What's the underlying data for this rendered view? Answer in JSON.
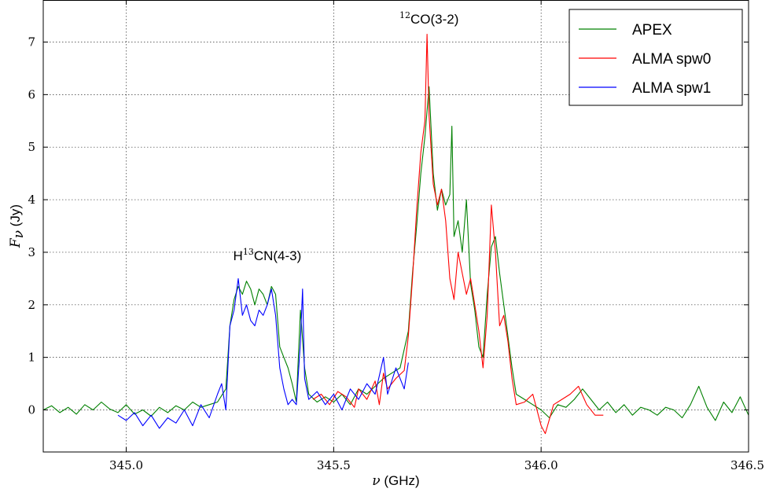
{
  "chart_data": {
    "type": "line",
    "xlabel": {
      "symbol": "ν",
      "unit": "(GHz)"
    },
    "ylabel": {
      "symbol": "F",
      "subscript": "ν",
      "unit": "(Jy)"
    },
    "xlim": [
      344.8,
      346.5
    ],
    "ylim": [
      -0.8,
      7.8
    ],
    "xticks": [
      345.0,
      345.5,
      346.0,
      346.5
    ],
    "xtick_labels": [
      "345.0",
      "345.5",
      "346.0",
      "346.5"
    ],
    "yticks": [
      0,
      1,
      2,
      3,
      4,
      5,
      6,
      7
    ],
    "ytick_labels": [
      "0",
      "1",
      "2",
      "3",
      "4",
      "5",
      "6",
      "7"
    ],
    "grid": true,
    "legend_position": "top-right",
    "annotations": [
      {
        "sup": "13",
        "before": "H",
        "after": "CN(4-3)",
        "x": 345.34,
        "y": 2.85
      },
      {
        "sup": "12",
        "before": "",
        "after": "CO(3-2)",
        "x": 345.73,
        "y": 7.35
      }
    ],
    "series": [
      {
        "name": "APEX",
        "color": "#008000",
        "points": [
          [
            344.8,
            0.0
          ],
          [
            344.82,
            0.08
          ],
          [
            344.84,
            -0.05
          ],
          [
            344.86,
            0.05
          ],
          [
            344.88,
            -0.08
          ],
          [
            344.9,
            0.1
          ],
          [
            344.92,
            0.0
          ],
          [
            344.94,
            0.15
          ],
          [
            344.96,
            0.02
          ],
          [
            344.98,
            -0.05
          ],
          [
            345.0,
            0.1
          ],
          [
            345.02,
            -0.08
          ],
          [
            345.04,
            0.0
          ],
          [
            345.06,
            -0.12
          ],
          [
            345.08,
            0.05
          ],
          [
            345.1,
            -0.05
          ],
          [
            345.12,
            0.08
          ],
          [
            345.14,
            0.0
          ],
          [
            345.16,
            0.15
          ],
          [
            345.18,
            0.05
          ],
          [
            345.2,
            0.1
          ],
          [
            345.22,
            0.15
          ],
          [
            345.24,
            0.4
          ],
          [
            345.245,
            1.0
          ],
          [
            345.25,
            1.6
          ],
          [
            345.26,
            2.1
          ],
          [
            345.27,
            2.35
          ],
          [
            345.28,
            2.2
          ],
          [
            345.29,
            2.45
          ],
          [
            345.3,
            2.3
          ],
          [
            345.31,
            2.0
          ],
          [
            345.32,
            2.3
          ],
          [
            345.33,
            2.2
          ],
          [
            345.34,
            2.0
          ],
          [
            345.35,
            2.35
          ],
          [
            345.36,
            2.2
          ],
          [
            345.37,
            1.2
          ],
          [
            345.38,
            1.0
          ],
          [
            345.39,
            0.8
          ],
          [
            345.4,
            0.5
          ],
          [
            345.41,
            0.15
          ],
          [
            345.42,
            1.9
          ],
          [
            345.43,
            0.8
          ],
          [
            345.44,
            0.3
          ],
          [
            345.46,
            0.15
          ],
          [
            345.48,
            0.25
          ],
          [
            345.5,
            0.15
          ],
          [
            345.52,
            0.3
          ],
          [
            345.54,
            0.1
          ],
          [
            345.56,
            0.4
          ],
          [
            345.58,
            0.3
          ],
          [
            345.6,
            0.45
          ],
          [
            345.62,
            0.6
          ],
          [
            345.64,
            0.7
          ],
          [
            345.66,
            0.8
          ],
          [
            345.68,
            1.5
          ],
          [
            345.69,
            2.6
          ],
          [
            345.7,
            3.5
          ],
          [
            345.71,
            4.5
          ],
          [
            345.72,
            5.2
          ],
          [
            345.73,
            6.15
          ],
          [
            345.74,
            4.5
          ],
          [
            345.75,
            3.8
          ],
          [
            345.76,
            4.2
          ],
          [
            345.77,
            3.9
          ],
          [
            345.78,
            4.1
          ],
          [
            345.785,
            5.4
          ],
          [
            345.79,
            3.3
          ],
          [
            345.8,
            3.6
          ],
          [
            345.81,
            3.0
          ],
          [
            345.82,
            4.0
          ],
          [
            345.83,
            2.4
          ],
          [
            345.84,
            1.9
          ],
          [
            345.85,
            1.2
          ],
          [
            345.86,
            1.0
          ],
          [
            345.87,
            2.2
          ],
          [
            345.88,
            3.1
          ],
          [
            345.89,
            3.3
          ],
          [
            345.9,
            2.6
          ],
          [
            345.91,
            2.0
          ],
          [
            345.92,
            1.4
          ],
          [
            345.93,
            0.8
          ],
          [
            345.94,
            0.3
          ],
          [
            345.96,
            0.2
          ],
          [
            345.98,
            0.1
          ],
          [
            346.0,
            0.0
          ],
          [
            346.02,
            -0.15
          ],
          [
            346.04,
            0.1
          ],
          [
            346.06,
            0.05
          ],
          [
            346.08,
            0.2
          ],
          [
            346.1,
            0.4
          ],
          [
            346.12,
            0.2
          ],
          [
            346.14,
            0.0
          ],
          [
            346.16,
            0.15
          ],
          [
            346.18,
            -0.05
          ],
          [
            346.2,
            0.1
          ],
          [
            346.22,
            -0.1
          ],
          [
            346.24,
            0.05
          ],
          [
            346.26,
            0.0
          ],
          [
            346.28,
            -0.1
          ],
          [
            346.3,
            0.05
          ],
          [
            346.32,
            0.0
          ],
          [
            346.34,
            -0.15
          ],
          [
            346.36,
            0.1
          ],
          [
            346.38,
            0.45
          ],
          [
            346.4,
            0.05
          ],
          [
            346.42,
            -0.2
          ],
          [
            346.44,
            0.15
          ],
          [
            346.46,
            -0.05
          ],
          [
            346.48,
            0.25
          ],
          [
            346.5,
            -0.1
          ]
        ]
      },
      {
        "name": "ALMA spw0",
        "color": "#ff0000",
        "points": [
          [
            345.45,
            0.2
          ],
          [
            345.47,
            0.3
          ],
          [
            345.49,
            0.1
          ],
          [
            345.51,
            0.35
          ],
          [
            345.53,
            0.25
          ],
          [
            345.55,
            0.05
          ],
          [
            345.56,
            0.4
          ],
          [
            345.58,
            0.2
          ],
          [
            345.6,
            0.55
          ],
          [
            345.61,
            0.1
          ],
          [
            345.62,
            0.7
          ],
          [
            345.63,
            0.4
          ],
          [
            345.65,
            0.6
          ],
          [
            345.67,
            0.75
          ],
          [
            345.68,
            1.4
          ],
          [
            345.69,
            2.5
          ],
          [
            345.7,
            3.8
          ],
          [
            345.71,
            4.9
          ],
          [
            345.72,
            5.5
          ],
          [
            345.725,
            7.15
          ],
          [
            345.73,
            5.6
          ],
          [
            345.74,
            4.3
          ],
          [
            345.75,
            3.9
          ],
          [
            345.76,
            4.2
          ],
          [
            345.77,
            3.6
          ],
          [
            345.78,
            2.5
          ],
          [
            345.79,
            2.1
          ],
          [
            345.8,
            3.0
          ],
          [
            345.81,
            2.6
          ],
          [
            345.82,
            2.2
          ],
          [
            345.83,
            2.5
          ],
          [
            345.84,
            2.0
          ],
          [
            345.85,
            1.5
          ],
          [
            345.86,
            0.8
          ],
          [
            345.87,
            1.8
          ],
          [
            345.88,
            3.9
          ],
          [
            345.89,
            3.0
          ],
          [
            345.9,
            1.6
          ],
          [
            345.91,
            1.8
          ],
          [
            345.92,
            1.3
          ],
          [
            345.93,
            0.6
          ],
          [
            345.94,
            0.1
          ],
          [
            345.96,
            0.15
          ],
          [
            345.98,
            0.3
          ],
          [
            346.0,
            -0.3
          ],
          [
            346.01,
            -0.45
          ],
          [
            346.03,
            0.1
          ],
          [
            346.05,
            0.2
          ],
          [
            346.07,
            0.3
          ],
          [
            346.09,
            0.45
          ],
          [
            346.11,
            0.1
          ],
          [
            346.13,
            -0.1
          ],
          [
            346.15,
            -0.1
          ]
        ]
      },
      {
        "name": "ALMA spw1",
        "color": "#0000ff",
        "points": [
          [
            344.98,
            -0.1
          ],
          [
            345.0,
            -0.2
          ],
          [
            345.02,
            -0.05
          ],
          [
            345.04,
            -0.3
          ],
          [
            345.06,
            -0.1
          ],
          [
            345.08,
            -0.35
          ],
          [
            345.1,
            -0.15
          ],
          [
            345.12,
            -0.25
          ],
          [
            345.14,
            0.0
          ],
          [
            345.16,
            -0.3
          ],
          [
            345.18,
            0.1
          ],
          [
            345.2,
            -0.15
          ],
          [
            345.22,
            0.3
          ],
          [
            345.23,
            0.5
          ],
          [
            345.24,
            0.0
          ],
          [
            345.25,
            1.6
          ],
          [
            345.26,
            1.9
          ],
          [
            345.27,
            2.5
          ],
          [
            345.28,
            1.8
          ],
          [
            345.29,
            2.0
          ],
          [
            345.3,
            1.7
          ],
          [
            345.31,
            1.6
          ],
          [
            345.32,
            1.9
          ],
          [
            345.33,
            1.8
          ],
          [
            345.34,
            2.0
          ],
          [
            345.35,
            2.3
          ],
          [
            345.36,
            1.8
          ],
          [
            345.37,
            0.8
          ],
          [
            345.38,
            0.4
          ],
          [
            345.39,
            0.1
          ],
          [
            345.4,
            0.2
          ],
          [
            345.41,
            0.1
          ],
          [
            345.42,
            1.3
          ],
          [
            345.425,
            2.3
          ],
          [
            345.43,
            0.6
          ],
          [
            345.44,
            0.2
          ],
          [
            345.46,
            0.35
          ],
          [
            345.48,
            0.1
          ],
          [
            345.5,
            0.3
          ],
          [
            345.52,
            0.0
          ],
          [
            345.54,
            0.4
          ],
          [
            345.56,
            0.2
          ],
          [
            345.58,
            0.5
          ],
          [
            345.6,
            0.3
          ],
          [
            345.62,
            1.0
          ],
          [
            345.63,
            0.3
          ],
          [
            345.65,
            0.8
          ],
          [
            345.67,
            0.4
          ],
          [
            345.68,
            0.9
          ]
        ]
      }
    ]
  }
}
